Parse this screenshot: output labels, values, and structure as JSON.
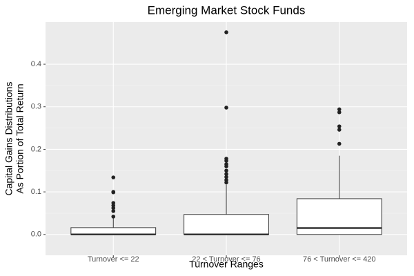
{
  "chart_data": {
    "type": "box",
    "title": "Emerging Market Stock Funds",
    "x_label": "Turnover Ranges",
    "y_label": [
      "Capital Gains Distributions",
      "As Portion of Total Return"
    ],
    "categories": [
      "Turnover <= 22",
      "22 < Turnover <= 76",
      "76 < Turnover <= 420"
    ],
    "boxes": [
      {
        "whisker_low": 0,
        "q1": 0,
        "median": 0,
        "q3": 0.016,
        "whisker_high": 0.039,
        "outliers": [
          0.134,
          0.1,
          0.099,
          0.074,
          0.068,
          0.062,
          0.055,
          0.042
        ]
      },
      {
        "whisker_low": 0,
        "q1": 0,
        "median": 0,
        "q3": 0.047,
        "whisker_high": 0.117,
        "outliers": [
          0.475,
          0.298,
          0.178,
          0.173,
          0.165,
          0.16,
          0.15,
          0.142,
          0.135,
          0.128,
          0.122
        ]
      },
      {
        "whisker_low": 0,
        "q1": 0,
        "median": 0.015,
        "q3": 0.084,
        "whisker_high": 0.185,
        "outliers": [
          0.294,
          0.287,
          0.254,
          0.246,
          0.213
        ]
      }
    ],
    "box_fill": "#ffffff",
    "box_stroke": "#333333",
    "point_color": "#222222",
    "ylim": [
      -0.049,
      0.499
    ],
    "yticks": [
      {
        "value": 0,
        "label": "0.0"
      },
      0.1,
      0.2,
      0.3,
      0.4
    ],
    "grid": true
  }
}
